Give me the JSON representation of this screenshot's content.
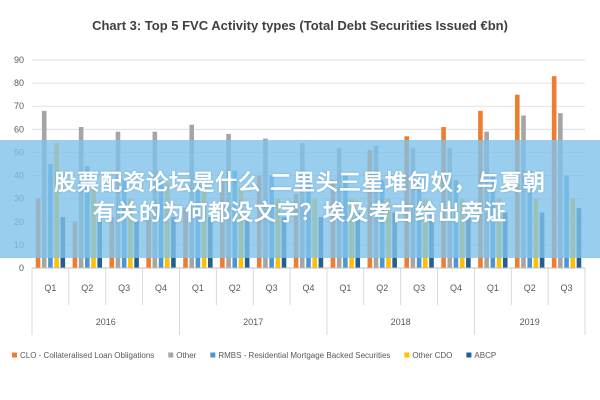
{
  "chart_data": {
    "type": "bar",
    "title": "Chart 3: Top 5 FVC Activity types (Total Debt Securities Issued €bn)",
    "xlabel": "",
    "ylabel": "",
    "ylim": [
      0,
      90
    ],
    "yticks": [
      0,
      10,
      20,
      30,
      40,
      50,
      60,
      70,
      80,
      90
    ],
    "grid": true,
    "legend": "bottom",
    "categories": [
      {
        "year": "2016",
        "quarter": "Q1"
      },
      {
        "year": "2016",
        "quarter": "Q2"
      },
      {
        "year": "2016",
        "quarter": "Q3"
      },
      {
        "year": "2016",
        "quarter": "Q4"
      },
      {
        "year": "2017",
        "quarter": "Q1"
      },
      {
        "year": "2017",
        "quarter": "Q2"
      },
      {
        "year": "2017",
        "quarter": "Q3"
      },
      {
        "year": "2017",
        "quarter": "Q4"
      },
      {
        "year": "2018",
        "quarter": "Q1"
      },
      {
        "year": "2018",
        "quarter": "Q2"
      },
      {
        "year": "2018",
        "quarter": "Q3"
      },
      {
        "year": "2018",
        "quarter": "Q4"
      },
      {
        "year": "2019",
        "quarter": "Q1"
      },
      {
        "year": "2019",
        "quarter": "Q2"
      },
      {
        "year": "2019",
        "quarter": "Q3"
      }
    ],
    "series": [
      {
        "name": "CLO - Collateralised Loan Obligations",
        "color": "#ed7d31",
        "values": [
          30,
          20,
          22,
          22,
          26,
          38,
          40,
          32,
          38,
          51,
          57,
          61,
          68,
          75,
          83
        ]
      },
      {
        "name": "Other",
        "color": "#a5a5a5",
        "values": [
          68,
          61,
          59,
          59,
          62,
          58,
          56,
          54,
          52,
          53,
          52,
          52,
          59,
          66,
          67
        ]
      },
      {
        "name": "RMBS - Residential Mortgage Backed Securities",
        "color": "#4e95d0",
        "values": [
          45,
          44,
          38,
          38,
          40,
          42,
          40,
          40,
          40,
          38,
          38,
          38,
          40,
          42,
          40
        ]
      },
      {
        "name": "Other CDO",
        "color": "#ffc000",
        "values": [
          54,
          35,
          30,
          37,
          35,
          35,
          30,
          30,
          30,
          30,
          30,
          30,
          30,
          30,
          30
        ]
      },
      {
        "name": "ABCP",
        "color": "#255e91",
        "values": [
          22,
          20,
          20,
          22,
          22,
          22,
          22,
          22,
          24,
          24,
          24,
          24,
          24,
          24,
          26
        ]
      }
    ]
  },
  "banner": {
    "line1": "股票配资论坛是什么 二里头三星堆匈奴，与夏朝",
    "line2": "有关的为何都没文字？埃及考古给出旁证"
  }
}
